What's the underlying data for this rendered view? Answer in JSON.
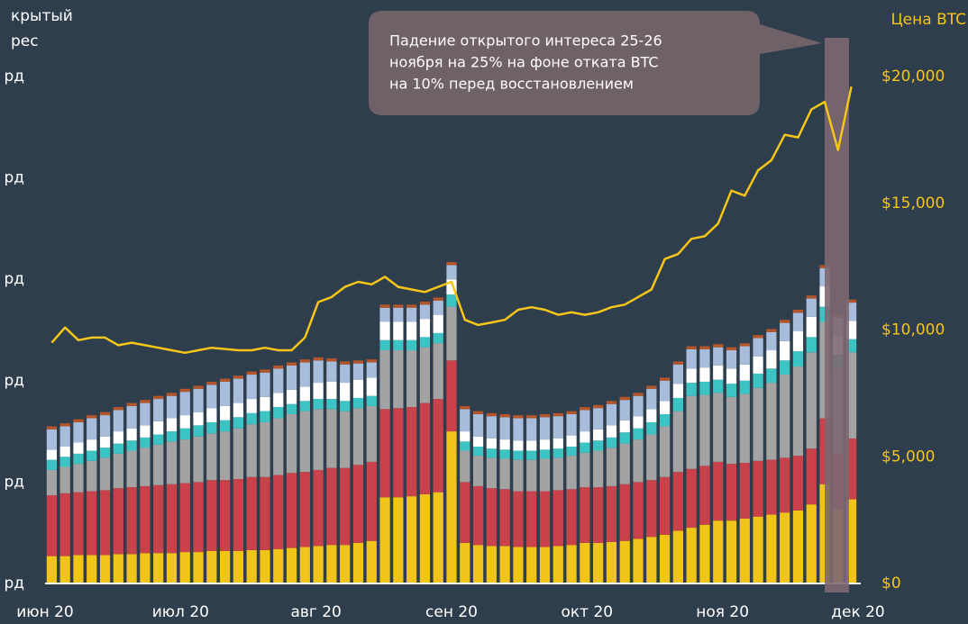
{
  "chart_data": {
    "type": "bar_line",
    "title_lines": [
      "крытый",
      "рес"
    ],
    "y2_title": "Цена BTC",
    "annotation_lines": [
      "Падение открытого интереса 25-26",
      "ноября на 25% на фоне отката BTC",
      "на 10% перед восстановлением"
    ],
    "x_labels": [
      "июн 20",
      "июл 20",
      "авг 20",
      "сен 20",
      "окт 20",
      "ноя 20",
      "дек 20"
    ],
    "categories": [
      null,
      null,
      null,
      null,
      null,
      null,
      null,
      null,
      null,
      null,
      null,
      null,
      null,
      null,
      null,
      null,
      null,
      null,
      null,
      null,
      null,
      null,
      null,
      null,
      null,
      null,
      null,
      null,
      null,
      null,
      null,
      null,
      null,
      null,
      null,
      null,
      null,
      null,
      null,
      null,
      null,
      null,
      null,
      null,
      null,
      null,
      null,
      null,
      null,
      null,
      null,
      null,
      null,
      null,
      null,
      null,
      null,
      null,
      null,
      null,
      null
    ],
    "ylim": [
      0,
      5
    ],
    "yticks": [
      {
        "value": 0,
        "label": "рд"
      },
      {
        "value": 1,
        "label": "рд"
      },
      {
        "value": 2,
        "label": "рд"
      },
      {
        "value": 3,
        "label": "рд"
      },
      {
        "value": 4,
        "label": "рд"
      },
      {
        "value": 5,
        "label": "рд"
      }
    ],
    "y2lim": [
      0,
      20000
    ],
    "y2ticks": [
      {
        "value": 0,
        "label": "$0"
      },
      {
        "value": 5000,
        "label": "$5,000"
      },
      {
        "value": 10000,
        "label": "$10,000"
      },
      {
        "value": 15000,
        "label": "$15,000"
      },
      {
        "value": 20000,
        "label": "$20,000"
      }
    ],
    "series": [
      {
        "color": "#f0c419",
        "values": [
          0.27,
          0.27,
          0.28,
          0.28,
          0.28,
          0.29,
          0.29,
          0.3,
          0.3,
          0.3,
          0.31,
          0.31,
          0.32,
          0.32,
          0.32,
          0.33,
          0.33,
          0.34,
          0.35,
          0.36,
          0.37,
          0.38,
          0.38,
          0.4,
          0.42,
          0.85,
          0.85,
          0.86,
          0.88,
          0.9,
          1.5,
          0.4,
          0.38,
          0.37,
          0.37,
          0.36,
          0.36,
          0.36,
          0.37,
          0.38,
          0.4,
          0.4,
          0.41,
          0.42,
          0.44,
          0.46,
          0.48,
          0.52,
          0.55,
          0.58,
          0.62,
          0.62,
          0.64,
          0.66,
          0.68,
          0.7,
          0.72,
          0.78,
          0.98,
          0.73,
          0.83
        ]
      },
      {
        "color": "#c8414b",
        "values": [
          0.6,
          0.62,
          0.62,
          0.63,
          0.64,
          0.65,
          0.66,
          0.66,
          0.67,
          0.68,
          0.68,
          0.69,
          0.7,
          0.7,
          0.71,
          0.72,
          0.72,
          0.73,
          0.74,
          0.74,
          0.75,
          0.76,
          0.76,
          0.77,
          0.78,
          0.87,
          0.88,
          0.88,
          0.9,
          0.92,
          0.7,
          0.6,
          0.58,
          0.57,
          0.56,
          0.55,
          0.55,
          0.55,
          0.55,
          0.55,
          0.55,
          0.55,
          0.55,
          0.56,
          0.56,
          0.56,
          0.57,
          0.58,
          0.58,
          0.58,
          0.58,
          0.56,
          0.55,
          0.55,
          0.54,
          0.54,
          0.54,
          0.55,
          0.65,
          0.55,
          0.6
        ]
      },
      {
        "color": "#a3a3a3",
        "values": [
          0.25,
          0.26,
          0.28,
          0.3,
          0.32,
          0.34,
          0.36,
          0.38,
          0.4,
          0.42,
          0.43,
          0.45,
          0.46,
          0.48,
          0.5,
          0.52,
          0.54,
          0.56,
          0.58,
          0.6,
          0.6,
          0.58,
          0.56,
          0.56,
          0.55,
          0.58,
          0.57,
          0.56,
          0.55,
          0.55,
          0.53,
          0.31,
          0.3,
          0.3,
          0.3,
          0.31,
          0.31,
          0.32,
          0.32,
          0.33,
          0.34,
          0.36,
          0.38,
          0.4,
          0.42,
          0.45,
          0.5,
          0.6,
          0.72,
          0.7,
          0.68,
          0.66,
          0.68,
          0.72,
          0.76,
          0.82,
          0.88,
          0.95,
          0.95,
          0.85,
          0.85
        ]
      },
      {
        "color": "#3cc4c4",
        "values": [
          0.1,
          0.1,
          0.1,
          0.1,
          0.1,
          0.1,
          0.1,
          0.1,
          0.1,
          0.1,
          0.11,
          0.11,
          0.11,
          0.11,
          0.11,
          0.11,
          0.11,
          0.11,
          0.1,
          0.1,
          0.1,
          0.1,
          0.1,
          0.1,
          0.1,
          0.1,
          0.1,
          0.1,
          0.1,
          0.1,
          0.12,
          0.09,
          0.09,
          0.09,
          0.09,
          0.09,
          0.09,
          0.09,
          0.09,
          0.09,
          0.1,
          0.1,
          0.1,
          0.11,
          0.11,
          0.12,
          0.12,
          0.13,
          0.13,
          0.13,
          0.13,
          0.13,
          0.13,
          0.14,
          0.14,
          0.14,
          0.15,
          0.15,
          0.15,
          0.13,
          0.13
        ]
      },
      {
        "color": "#ffffff",
        "values": [
          0.1,
          0.1,
          0.11,
          0.11,
          0.11,
          0.12,
          0.12,
          0.12,
          0.13,
          0.13,
          0.13,
          0.13,
          0.14,
          0.14,
          0.14,
          0.14,
          0.14,
          0.14,
          0.14,
          0.14,
          0.16,
          0.17,
          0.18,
          0.18,
          0.18,
          0.18,
          0.18,
          0.18,
          0.18,
          0.18,
          0.15,
          0.1,
          0.1,
          0.1,
          0.1,
          0.1,
          0.1,
          0.1,
          0.1,
          0.11,
          0.11,
          0.11,
          0.12,
          0.12,
          0.12,
          0.13,
          0.13,
          0.14,
          0.14,
          0.14,
          0.14,
          0.15,
          0.16,
          0.17,
          0.18,
          0.19,
          0.2,
          0.2,
          0.2,
          0.18,
          0.18
        ]
      },
      {
        "color": "#a8bddb",
        "values": [
          0.2,
          0.2,
          0.2,
          0.21,
          0.21,
          0.21,
          0.22,
          0.22,
          0.22,
          0.22,
          0.23,
          0.23,
          0.23,
          0.24,
          0.24,
          0.24,
          0.24,
          0.24,
          0.24,
          0.24,
          0.22,
          0.2,
          0.18,
          0.16,
          0.15,
          0.14,
          0.14,
          0.14,
          0.14,
          0.14,
          0.14,
          0.22,
          0.22,
          0.22,
          0.22,
          0.22,
          0.22,
          0.22,
          0.22,
          0.21,
          0.21,
          0.21,
          0.21,
          0.2,
          0.2,
          0.2,
          0.2,
          0.19,
          0.19,
          0.18,
          0.18,
          0.18,
          0.18,
          0.18,
          0.18,
          0.18,
          0.18,
          0.18,
          0.18,
          0.18,
          0.18
        ]
      },
      {
        "color": "#b5562a",
        "values": [
          0.03,
          0.03,
          0.03,
          0.03,
          0.03,
          0.03,
          0.03,
          0.03,
          0.03,
          0.03,
          0.03,
          0.03,
          0.03,
          0.03,
          0.03,
          0.03,
          0.03,
          0.03,
          0.03,
          0.03,
          0.03,
          0.03,
          0.03,
          0.03,
          0.03,
          0.03,
          0.03,
          0.03,
          0.03,
          0.03,
          0.03,
          0.03,
          0.03,
          0.03,
          0.03,
          0.03,
          0.03,
          0.03,
          0.03,
          0.03,
          0.03,
          0.03,
          0.03,
          0.03,
          0.03,
          0.03,
          0.03,
          0.03,
          0.03,
          0.03,
          0.03,
          0.03,
          0.03,
          0.03,
          0.03,
          0.03,
          0.03,
          0.03,
          0.03,
          0.03,
          0.03
        ]
      },
      {
        "color": "#f5c518",
        "axis": "y2",
        "values": [
          9500,
          10100,
          9600,
          9700,
          9700,
          9400,
          9500,
          9400,
          9300,
          9200,
          9100,
          9200,
          9300,
          9250,
          9200,
          9200,
          9300,
          9200,
          9200,
          9700,
          11100,
          11300,
          11700,
          11900,
          11800,
          12100,
          11700,
          11600,
          11500,
          11700,
          11900,
          10400,
          10200,
          10300,
          10400,
          10800,
          10900,
          10800,
          10600,
          10700,
          10600,
          10700,
          10900,
          11000,
          11300,
          11600,
          12800,
          13000,
          13600,
          13700,
          14200,
          15500,
          15300,
          16300,
          16700,
          17700,
          17600,
          18700,
          19000,
          17100,
          19600
        ]
      }
    ]
  }
}
